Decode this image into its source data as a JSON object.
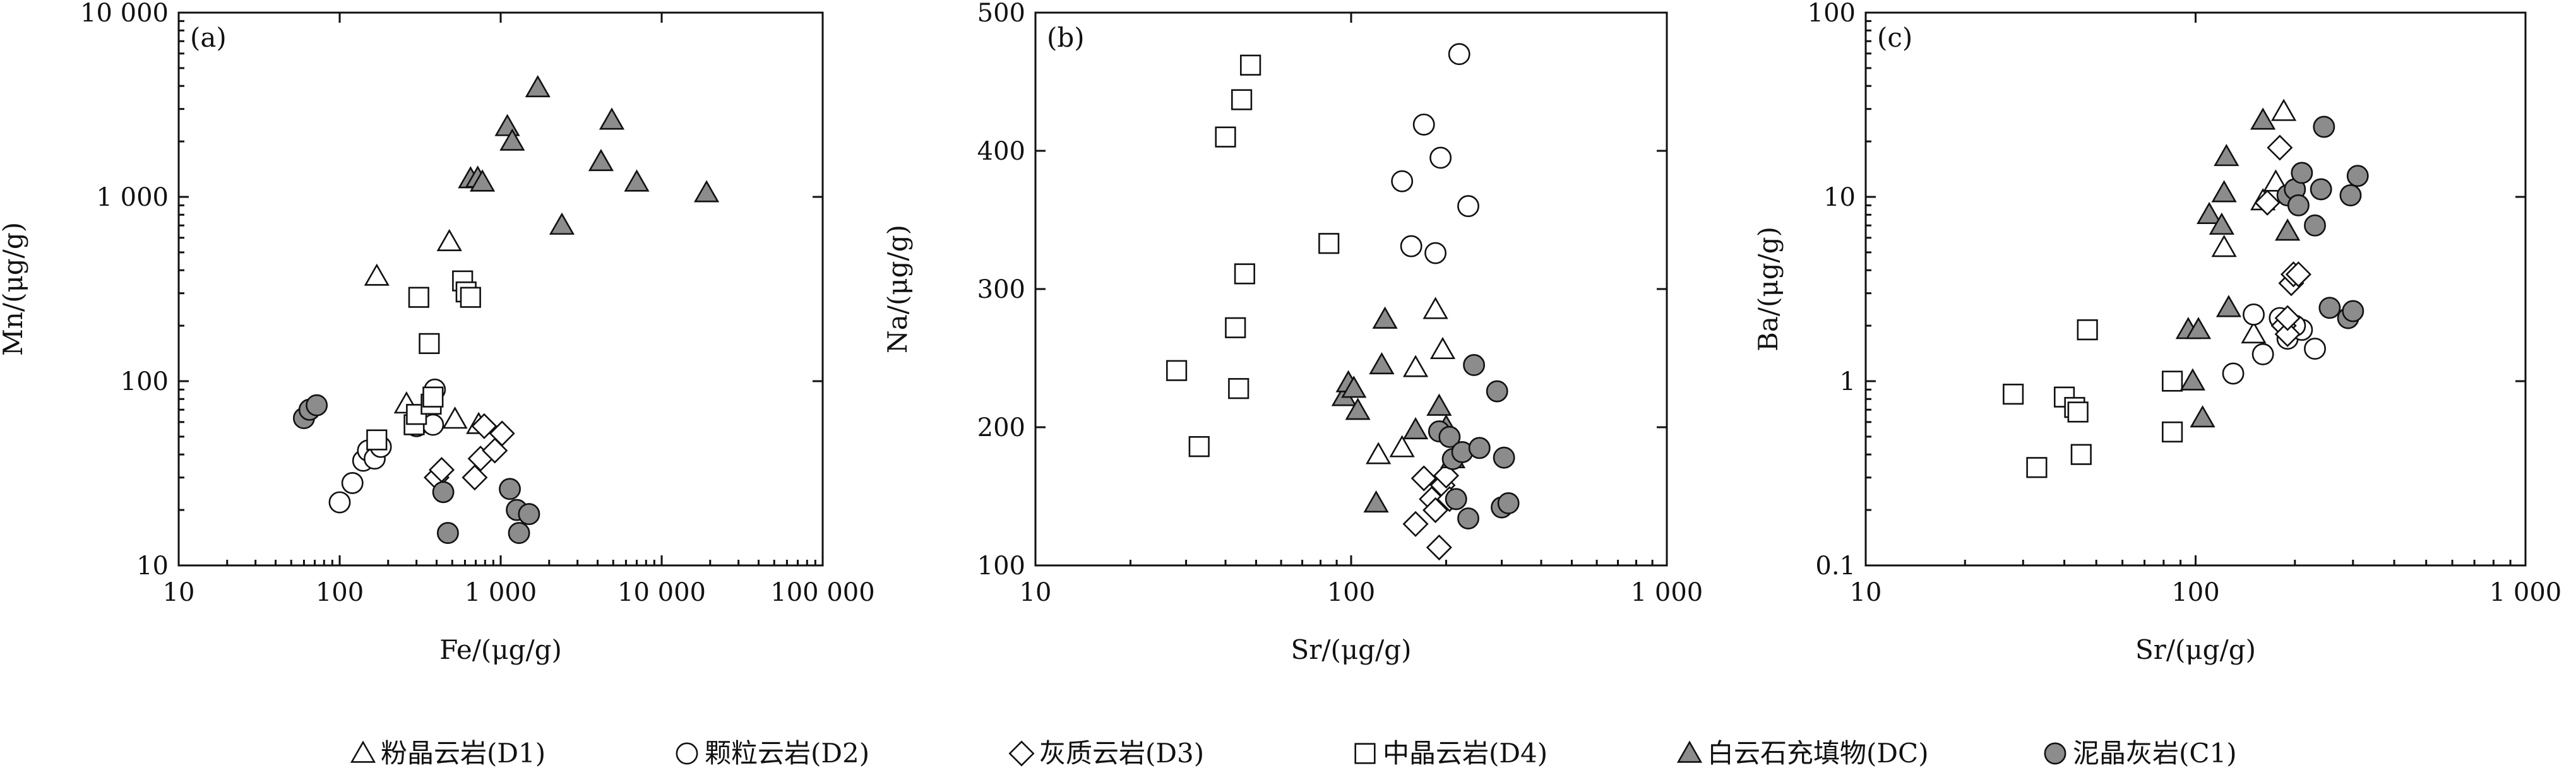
{
  "figure": {
    "legend": [
      {
        "symbol": "triangle-open",
        "label": "粉晶云岩(D1)"
      },
      {
        "symbol": "circle-open",
        "label": "颗粒云岩(D2)"
      },
      {
        "symbol": "diamond-open",
        "label": "灰质云岩(D3)"
      },
      {
        "symbol": "square-open",
        "label": "中晶云岩(D4)"
      },
      {
        "symbol": "triangle-filled",
        "label": "白云石充填物(DC)"
      },
      {
        "symbol": "circle-filled",
        "label": "泥晶灰岩(C1)"
      }
    ],
    "colors": {
      "marker_fill": "#8c8c8c",
      "marker_stroke": "#111111",
      "open_fill": "#ffffff"
    }
  },
  "chart_data": [
    {
      "type": "scatter",
      "panel_label": "(a)",
      "xlabel": "Fe/(μg/g)",
      "ylabel": "Mn/(μg/g)",
      "xscale": "log",
      "yscale": "log",
      "xlim": [
        10,
        100000
      ],
      "ylim": [
        10,
        10000
      ],
      "xticks": [
        10,
        100,
        1000,
        10000,
        100000
      ],
      "xtick_labels": [
        "10",
        "100",
        "1 000",
        "10 000",
        "100 000"
      ],
      "yticks": [
        10,
        100,
        1000,
        10000
      ],
      "ytick_labels": [
        "10",
        "100",
        "1 000",
        "10 000"
      ],
      "grid": false,
      "series": [
        {
          "name": "粉晶云岩(D1)",
          "symbol": "triangle-open",
          "points": [
            [
              170,
              370
            ],
            [
              480,
              570
            ],
            [
              260,
              75
            ],
            [
              520,
              62
            ],
            [
              730,
              58
            ]
          ]
        },
        {
          "name": "颗粒云岩(D2)",
          "symbol": "circle-open",
          "points": [
            [
              100,
              22
            ],
            [
              120,
              28
            ],
            [
              140,
              37
            ],
            [
              150,
              42
            ],
            [
              165,
              38
            ],
            [
              180,
              44
            ],
            [
              300,
              57
            ],
            [
              380,
              58
            ],
            [
              390,
              90
            ]
          ]
        },
        {
          "name": "灰质云岩(D3)",
          "symbol": "diamond-open",
          "points": [
            [
              400,
              30
            ],
            [
              430,
              33
            ],
            [
              690,
              30
            ],
            [
              750,
              38
            ],
            [
              790,
              57
            ],
            [
              920,
              42
            ],
            [
              1020,
              52
            ]
          ]
        },
        {
          "name": "中晶云岩(D4)",
          "symbol": "square-open",
          "points": [
            [
              170,
              48
            ],
            [
              290,
              58
            ],
            [
              300,
              66
            ],
            [
              310,
              285
            ],
            [
              360,
              160
            ],
            [
              370,
              75
            ],
            [
              380,
              82
            ],
            [
              580,
              350
            ],
            [
              610,
              305
            ],
            [
              650,
              285
            ]
          ]
        },
        {
          "name": "白云石充填物(DC)",
          "symbol": "triangle-filled",
          "points": [
            [
              650,
              1250
            ],
            [
              720,
              1260
            ],
            [
              770,
              1200
            ],
            [
              1100,
              2400
            ],
            [
              1180,
              2000
            ],
            [
              1700,
              3900
            ],
            [
              2400,
              700
            ],
            [
              4200,
              1550
            ],
            [
              4900,
              2600
            ],
            [
              7000,
              1200
            ],
            [
              19000,
              1050
            ]
          ]
        },
        {
          "name": "泥晶灰岩(C1)",
          "symbol": "circle-filled",
          "points": [
            [
              60,
              63
            ],
            [
              65,
              70
            ],
            [
              72,
              74
            ],
            [
              440,
              25
            ],
            [
              470,
              15
            ],
            [
              1140,
              26
            ],
            [
              1260,
              20
            ],
            [
              1300,
              15
            ],
            [
              1500,
              19
            ]
          ]
        }
      ]
    },
    {
      "type": "scatter",
      "panel_label": "(b)",
      "xlabel": "Sr/(μg/g)",
      "ylabel": "Na/(μg/g)",
      "xscale": "log",
      "yscale": "linear",
      "xlim": [
        10,
        1000
      ],
      "ylim": [
        100,
        500
      ],
      "xticks": [
        10,
        100,
        1000
      ],
      "xtick_labels": [
        "10",
        "100",
        "1 000"
      ],
      "yticks": [
        100,
        200,
        300,
        400,
        500
      ],
      "ytick_labels": [
        "100",
        "200",
        "300",
        "400",
        "500"
      ],
      "grid": false,
      "series": [
        {
          "name": "粉晶云岩(D1)",
          "symbol": "triangle-open",
          "points": [
            [
              122,
              180
            ],
            [
              145,
              185
            ],
            [
              160,
              243
            ],
            [
              185,
              285
            ],
            [
              195,
              256
            ]
          ]
        },
        {
          "name": "颗粒云岩(D2)",
          "symbol": "circle-open",
          "points": [
            [
              145,
              378
            ],
            [
              155,
              331
            ],
            [
              170,
              419
            ],
            [
              185,
              326
            ],
            [
              192,
              395
            ],
            [
              220,
              470
            ],
            [
              235,
              360
            ]
          ]
        },
        {
          "name": "灰质云岩(D3)",
          "symbol": "diamond-open",
          "points": [
            [
              160,
              130
            ],
            [
              170,
              163
            ],
            [
              180,
              148
            ],
            [
              185,
              140
            ],
            [
              190,
              113
            ],
            [
              195,
              158
            ],
            [
              200,
              165
            ],
            [
              205,
              148
            ]
          ]
        },
        {
          "name": "中晶云岩(D4)",
          "symbol": "square-open",
          "points": [
            [
              28,
              241
            ],
            [
              33,
              186
            ],
            [
              40,
              410
            ],
            [
              43,
              272
            ],
            [
              44,
              228
            ],
            [
              45,
              437
            ],
            [
              46,
              311
            ],
            [
              48,
              462
            ],
            [
              85,
              333
            ]
          ]
        },
        {
          "name": "白云石充填物(DC)",
          "symbol": "triangle-filled",
          "points": [
            [
              95,
              222
            ],
            [
              98,
              232
            ],
            [
              102,
              228
            ],
            [
              105,
              212
            ],
            [
              120,
              145
            ],
            [
              125,
              245
            ],
            [
              128,
              278
            ],
            [
              160,
              198
            ],
            [
              190,
              215
            ],
            [
              200,
              200
            ],
            [
              210,
              177
            ]
          ]
        },
        {
          "name": "泥晶灰岩(C1)",
          "symbol": "circle-filled",
          "points": [
            [
              190,
              197
            ],
            [
              205,
              193
            ],
            [
              210,
              177
            ],
            [
              215,
              148
            ],
            [
              225,
              182
            ],
            [
              235,
              134
            ],
            [
              245,
              245
            ],
            [
              255,
              185
            ],
            [
              290,
              226
            ],
            [
              300,
              142
            ],
            [
              305,
              178
            ],
            [
              315,
              145
            ]
          ]
        }
      ]
    },
    {
      "type": "scatter",
      "panel_label": "(c)",
      "xlabel": "Sr/(μg/g)",
      "ylabel": "Ba/(μg/g)",
      "xscale": "log",
      "yscale": "log",
      "xlim": [
        10,
        1000
      ],
      "ylim": [
        0.1,
        100
      ],
      "xticks": [
        10,
        100,
        1000
      ],
      "xtick_labels": [
        "10",
        "100",
        "1 000"
      ],
      "yticks": [
        0.1,
        1,
        10,
        100
      ],
      "ytick_labels": [
        "0.1",
        "1",
        "10",
        "100"
      ],
      "grid": false,
      "series": [
        {
          "name": "粉晶云岩(D1)",
          "symbol": "triangle-open",
          "points": [
            [
              122,
              5.3
            ],
            [
              150,
              1.8
            ],
            [
              160,
              9.5
            ],
            [
              185,
              29
            ],
            [
              175,
              12
            ]
          ]
        },
        {
          "name": "颗粒云岩(D2)",
          "symbol": "circle-open",
          "points": [
            [
              130,
              1.1
            ],
            [
              150,
              2.3
            ],
            [
              160,
              1.4
            ],
            [
              180,
              2.2
            ],
            [
              190,
              1.7
            ],
            [
              210,
              1.9
            ],
            [
              230,
              1.5
            ],
            [
              200,
              2.0
            ]
          ]
        },
        {
          "name": "灰质云岩(D3)",
          "symbol": "diamond-open",
          "points": [
            [
              165,
              9.3
            ],
            [
              180,
              18.5
            ],
            [
              185,
              2.0
            ],
            [
              190,
              1.8
            ],
            [
              195,
              3.4
            ],
            [
              198,
              3.8
            ],
            [
              205,
              3.8
            ],
            [
              190,
              2.2
            ]
          ]
        },
        {
          "name": "中晶云岩(D4)",
          "symbol": "square-open",
          "points": [
            [
              28,
              0.85
            ],
            [
              33,
              0.34
            ],
            [
              40,
              0.82
            ],
            [
              43,
              0.72
            ],
            [
              44,
              0.68
            ],
            [
              45,
              0.4
            ],
            [
              47,
              1.9
            ],
            [
              85,
              1.0
            ],
            [
              85,
              0.53
            ]
          ]
        },
        {
          "name": "白云石充填物(DC)",
          "symbol": "triangle-filled",
          "points": [
            [
              95,
              1.9
            ],
            [
              98,
              1.0
            ],
            [
              102,
              1.9
            ],
            [
              105,
              0.63
            ],
            [
              110,
              8.0
            ],
            [
              120,
              7.0
            ],
            [
              122,
              10.5
            ],
            [
              124,
              16.5
            ],
            [
              126,
              2.5
            ],
            [
              160,
              26
            ],
            [
              190,
              6.5
            ]
          ]
        },
        {
          "name": "泥晶灰岩(C1)",
          "symbol": "circle-filled",
          "points": [
            [
              190,
              10.2
            ],
            [
              200,
              11.0
            ],
            [
              205,
              9.0
            ],
            [
              210,
              13.5
            ],
            [
              230,
              7.0
            ],
            [
              240,
              11.0
            ],
            [
              245,
              24
            ],
            [
              255,
              2.5
            ],
            [
              290,
              2.2
            ],
            [
              295,
              10.2
            ],
            [
              300,
              2.4
            ],
            [
              310,
              13
            ]
          ]
        }
      ]
    }
  ]
}
